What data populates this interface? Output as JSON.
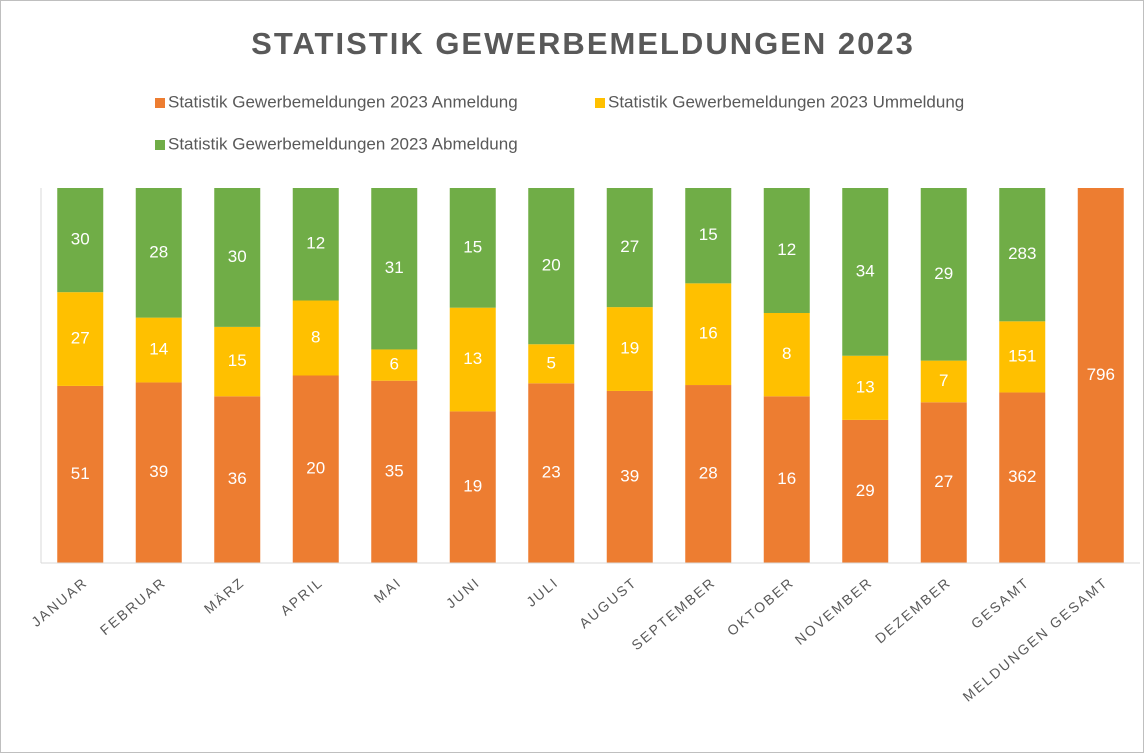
{
  "chart_data": {
    "type": "bar",
    "stacked": "percent",
    "title": "STATISTIK GEWERBEMELDUNGEN 2023",
    "categories": [
      "JANUAR",
      "FEBRUAR",
      "MÄRZ",
      "APRIL",
      "MAI",
      "JUNI",
      "JULI",
      "AUGUST",
      "SEPTEMBER",
      "OKTOBER",
      "NOVEMBER",
      "DEZEMBER",
      "GESAMT",
      "MELDUNGEN GESAMT"
    ],
    "series": [
      {
        "name": "Statistik Gewerbemeldungen 2023 Anmeldung",
        "color": "#ED7D31",
        "values": [
          51,
          39,
          36,
          20,
          35,
          19,
          23,
          39,
          28,
          16,
          29,
          27,
          362,
          796
        ]
      },
      {
        "name": "Statistik Gewerbemeldungen 2023 Ummeldung",
        "color": "#FFC000",
        "values": [
          27,
          14,
          15,
          8,
          6,
          13,
          5,
          19,
          16,
          8,
          13,
          7,
          151,
          null
        ]
      },
      {
        "name": "Statistik Gewerbemeldungen 2023 Abmeldung",
        "color": "#70AD47",
        "values": [
          30,
          28,
          30,
          12,
          31,
          15,
          20,
          27,
          15,
          12,
          34,
          29,
          283,
          null
        ]
      }
    ],
    "legend": "top"
  }
}
